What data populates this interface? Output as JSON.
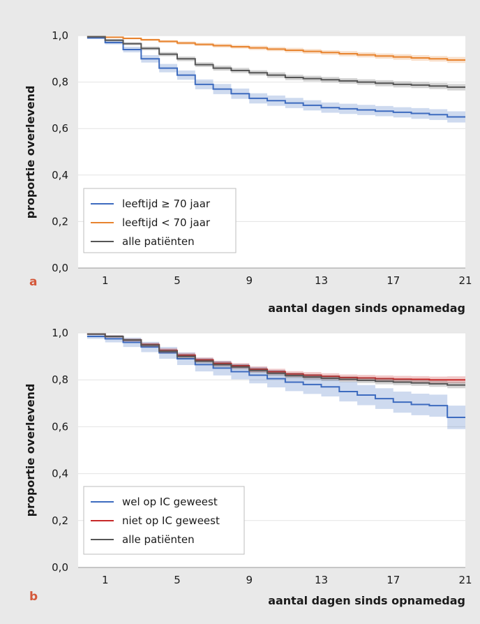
{
  "colors": {
    "background": "#e9e9e9",
    "panel_letter": "#d4583a"
  },
  "chart_data": [
    {
      "type": "line",
      "subtype": "kaplan-meier step survival curves with confidence bands",
      "panel_label": "a",
      "xlabel": "aantal dagen sinds opnamedag",
      "ylabel": "proportie overlevend",
      "xlim": [
        -0.5,
        21
      ],
      "ylim": [
        0,
        1.0
      ],
      "x_ticks": [
        1,
        5,
        9,
        13,
        17,
        21
      ],
      "y_ticks": [
        "0,0",
        "0,2",
        "0,4",
        "0,6",
        "0,8",
        "1,0"
      ],
      "grid": "horizontal",
      "legend": "lower-left",
      "series": [
        {
          "name": "leeftijd ≥ 70 jaar",
          "color": "#3d6bbf",
          "x": [
            0,
            1,
            2,
            3,
            4,
            5,
            6,
            7,
            8,
            9,
            10,
            11,
            12,
            13,
            14,
            15,
            16,
            17,
            18,
            19,
            20,
            21
          ],
          "values": [
            0.99,
            0.97,
            0.94,
            0.9,
            0.86,
            0.83,
            0.79,
            0.77,
            0.75,
            0.73,
            0.72,
            0.71,
            0.7,
            0.69,
            0.685,
            0.68,
            0.675,
            0.67,
            0.665,
            0.66,
            0.65,
            0.65
          ],
          "band_halfwidth": [
            0.004,
            0.008,
            0.012,
            0.016,
            0.018,
            0.02,
            0.021,
            0.022,
            0.022,
            0.022,
            0.022,
            0.022,
            0.022,
            0.022,
            0.022,
            0.022,
            0.022,
            0.022,
            0.023,
            0.023,
            0.024,
            0.024
          ]
        },
        {
          "name": "leeftijd < 70 jaar",
          "color": "#e8842f",
          "x": [
            0,
            1,
            2,
            3,
            4,
            5,
            6,
            7,
            8,
            9,
            10,
            11,
            12,
            13,
            14,
            15,
            16,
            17,
            18,
            19,
            20,
            21
          ],
          "values": [
            0.995,
            0.993,
            0.988,
            0.982,
            0.975,
            0.968,
            0.962,
            0.957,
            0.952,
            0.947,
            0.942,
            0.937,
            0.932,
            0.927,
            0.922,
            0.917,
            0.912,
            0.908,
            0.904,
            0.9,
            0.895,
            0.895
          ],
          "band_halfwidth": [
            0.002,
            0.003,
            0.004,
            0.005,
            0.006,
            0.007,
            0.007,
            0.008,
            0.008,
            0.009,
            0.009,
            0.01,
            0.01,
            0.01,
            0.011,
            0.011,
            0.011,
            0.012,
            0.012,
            0.012,
            0.013,
            0.013
          ]
        },
        {
          "name": "alle patiënten",
          "color": "#555555",
          "x": [
            0,
            1,
            2,
            3,
            4,
            5,
            6,
            7,
            8,
            9,
            10,
            11,
            12,
            13,
            14,
            15,
            16,
            17,
            18,
            19,
            20,
            21
          ],
          "values": [
            0.995,
            0.98,
            0.965,
            0.945,
            0.92,
            0.9,
            0.875,
            0.86,
            0.85,
            0.84,
            0.83,
            0.82,
            0.815,
            0.81,
            0.805,
            0.8,
            0.795,
            0.79,
            0.787,
            0.783,
            0.778,
            0.778
          ],
          "band_halfwidth": [
            0.003,
            0.005,
            0.006,
            0.008,
            0.009,
            0.01,
            0.01,
            0.011,
            0.011,
            0.011,
            0.012,
            0.012,
            0.012,
            0.012,
            0.012,
            0.012,
            0.013,
            0.013,
            0.013,
            0.013,
            0.014,
            0.014
          ]
        }
      ]
    },
    {
      "type": "line",
      "subtype": "kaplan-meier step survival curves with confidence bands",
      "panel_label": "b",
      "xlabel": "aantal dagen sinds opnamedag",
      "ylabel": "proportie overlevend",
      "xlim": [
        -0.5,
        21
      ],
      "ylim": [
        0,
        1.0
      ],
      "x_ticks": [
        1,
        5,
        9,
        13,
        17,
        21
      ],
      "y_ticks": [
        "0,0",
        "0,2",
        "0,4",
        "0,6",
        "0,8",
        "1,0"
      ],
      "grid": "horizontal",
      "legend": "lower-left",
      "series": [
        {
          "name": "wel op IC geweest",
          "color": "#3d6bbf",
          "x": [
            0,
            1,
            2,
            3,
            4,
            5,
            6,
            7,
            8,
            9,
            10,
            11,
            12,
            13,
            14,
            15,
            16,
            17,
            18,
            19,
            20,
            21
          ],
          "values": [
            0.985,
            0.975,
            0.96,
            0.94,
            0.915,
            0.89,
            0.865,
            0.85,
            0.835,
            0.82,
            0.805,
            0.79,
            0.78,
            0.77,
            0.75,
            0.735,
            0.72,
            0.705,
            0.695,
            0.69,
            0.64,
            0.64
          ],
          "band_halfwidth": [
            0.01,
            0.015,
            0.02,
            0.022,
            0.025,
            0.027,
            0.029,
            0.031,
            0.033,
            0.035,
            0.037,
            0.038,
            0.04,
            0.041,
            0.042,
            0.043,
            0.044,
            0.045,
            0.046,
            0.047,
            0.05,
            0.05
          ]
        },
        {
          "name": "niet op IC geweest",
          "color": "#c62828",
          "x": [
            0,
            1,
            2,
            3,
            4,
            5,
            6,
            7,
            8,
            9,
            10,
            11,
            12,
            13,
            14,
            15,
            16,
            17,
            18,
            19,
            20,
            21
          ],
          "values": [
            0.995,
            0.985,
            0.97,
            0.95,
            0.925,
            0.905,
            0.885,
            0.87,
            0.86,
            0.845,
            0.835,
            0.825,
            0.82,
            0.815,
            0.81,
            0.808,
            0.805,
            0.803,
            0.802,
            0.8,
            0.8,
            0.8
          ],
          "band_halfwidth": [
            0.003,
            0.005,
            0.006,
            0.008,
            0.009,
            0.01,
            0.01,
            0.011,
            0.011,
            0.012,
            0.012,
            0.012,
            0.013,
            0.013,
            0.013,
            0.013,
            0.014,
            0.014,
            0.014,
            0.014,
            0.015,
            0.015
          ]
        },
        {
          "name": "alle patiënten",
          "color": "#555555",
          "x": [
            0,
            1,
            2,
            3,
            4,
            5,
            6,
            7,
            8,
            9,
            10,
            11,
            12,
            13,
            14,
            15,
            16,
            17,
            18,
            19,
            20,
            21
          ],
          "values": [
            0.995,
            0.985,
            0.97,
            0.948,
            0.922,
            0.9,
            0.88,
            0.865,
            0.855,
            0.84,
            0.828,
            0.818,
            0.812,
            0.807,
            0.802,
            0.798,
            0.794,
            0.79,
            0.787,
            0.783,
            0.778,
            0.778
          ],
          "band_halfwidth": [
            0.003,
            0.005,
            0.006,
            0.008,
            0.009,
            0.01,
            0.01,
            0.011,
            0.011,
            0.011,
            0.012,
            0.012,
            0.012,
            0.012,
            0.012,
            0.012,
            0.013,
            0.013,
            0.013,
            0.013,
            0.014,
            0.014
          ]
        }
      ]
    }
  ]
}
